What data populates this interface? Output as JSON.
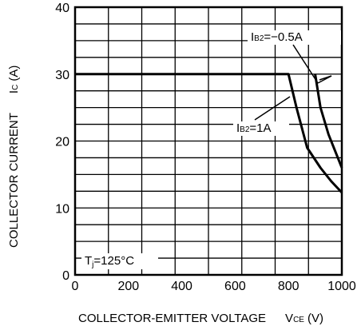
{
  "chart_data": {
    "type": "line",
    "xlabel": "COLLECTOR-EMITTER VOLTAGE",
    "xlabel_symbol": "V",
    "xlabel_symbol_sub": "CE",
    "xlabel_unit": "(V)",
    "ylabel": "COLLECTOR CURRENT",
    "ylabel_symbol": "I",
    "ylabel_symbol_sub": "C",
    "ylabel_unit": "(A)",
    "xlim": [
      0,
      1000
    ],
    "ylim": [
      0,
      40
    ],
    "xticks": [
      "0",
      "200",
      "400",
      "600",
      "800",
      "1000"
    ],
    "yticks": [
      "0",
      "10",
      "20",
      "30",
      "40"
    ],
    "grid": true,
    "condition": {
      "symbol": "T",
      "sub": "j",
      "value": "=125°C"
    },
    "series": [
      {
        "name": "IB2=1A",
        "label_main": "I",
        "label_sub": "B2",
        "label_val": "=1A",
        "points": [
          [
            0,
            30
          ],
          [
            800,
            30
          ],
          [
            830,
            25
          ],
          [
            870,
            19
          ],
          [
            920,
            16
          ],
          [
            960,
            14
          ],
          [
            1000,
            12.3
          ]
        ]
      },
      {
        "name": "IB2=−0.5A",
        "label_main": "I",
        "label_sub": "B2",
        "label_val": "=−0.5A",
        "points": [
          [
            900,
            30
          ],
          [
            920,
            25
          ],
          [
            950,
            21
          ],
          [
            975,
            18.5
          ],
          [
            1000,
            16
          ]
        ]
      }
    ]
  }
}
